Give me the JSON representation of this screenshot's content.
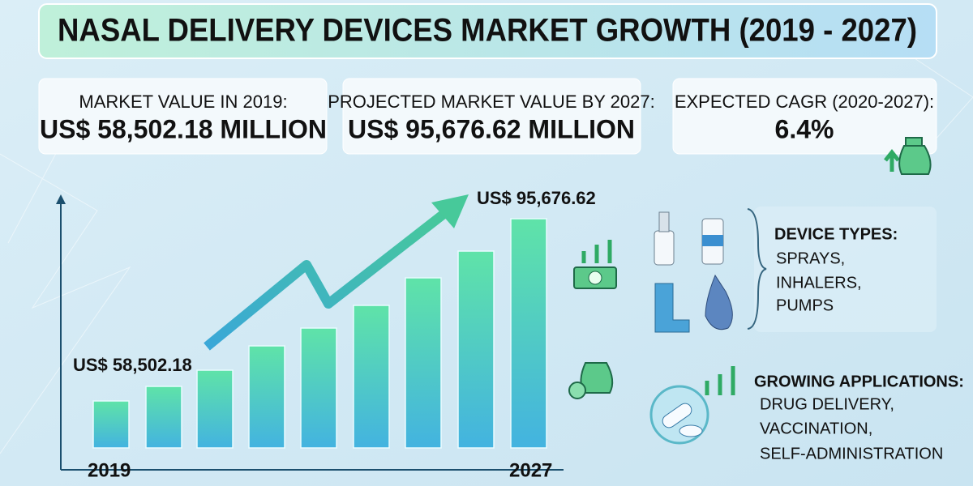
{
  "header": {
    "title": "NASAL DELIVERY DEVICES MARKET GROWTH (2019 - 2027)"
  },
  "stats": [
    {
      "label": "MARKET VALUE IN 2019:",
      "value": "US$ 58,502.18 MILLION"
    },
    {
      "label": "PROJECTED MARKET VALUE BY 2027:",
      "value": "US$ 95,676.62 MILLION"
    },
    {
      "label": "EXPECTED CAGR (2020-2027):",
      "value": "6.4%"
    }
  ],
  "chart": {
    "start_label": "US$ 58,502.18",
    "end_label": "US$ 95,676.62",
    "start_year": "2019",
    "end_year": "2027"
  },
  "device_types": {
    "title": "DEVICE TYPES:",
    "items": [
      "SPRAYS,",
      "INHALERS,",
      "PUMPS"
    ]
  },
  "applications": {
    "title": "GROWING APPLICATIONS:",
    "items": [
      "DRUG DELIVERY,",
      "VACCINATION,",
      "SELF-ADMINISTRATION"
    ]
  }
}
